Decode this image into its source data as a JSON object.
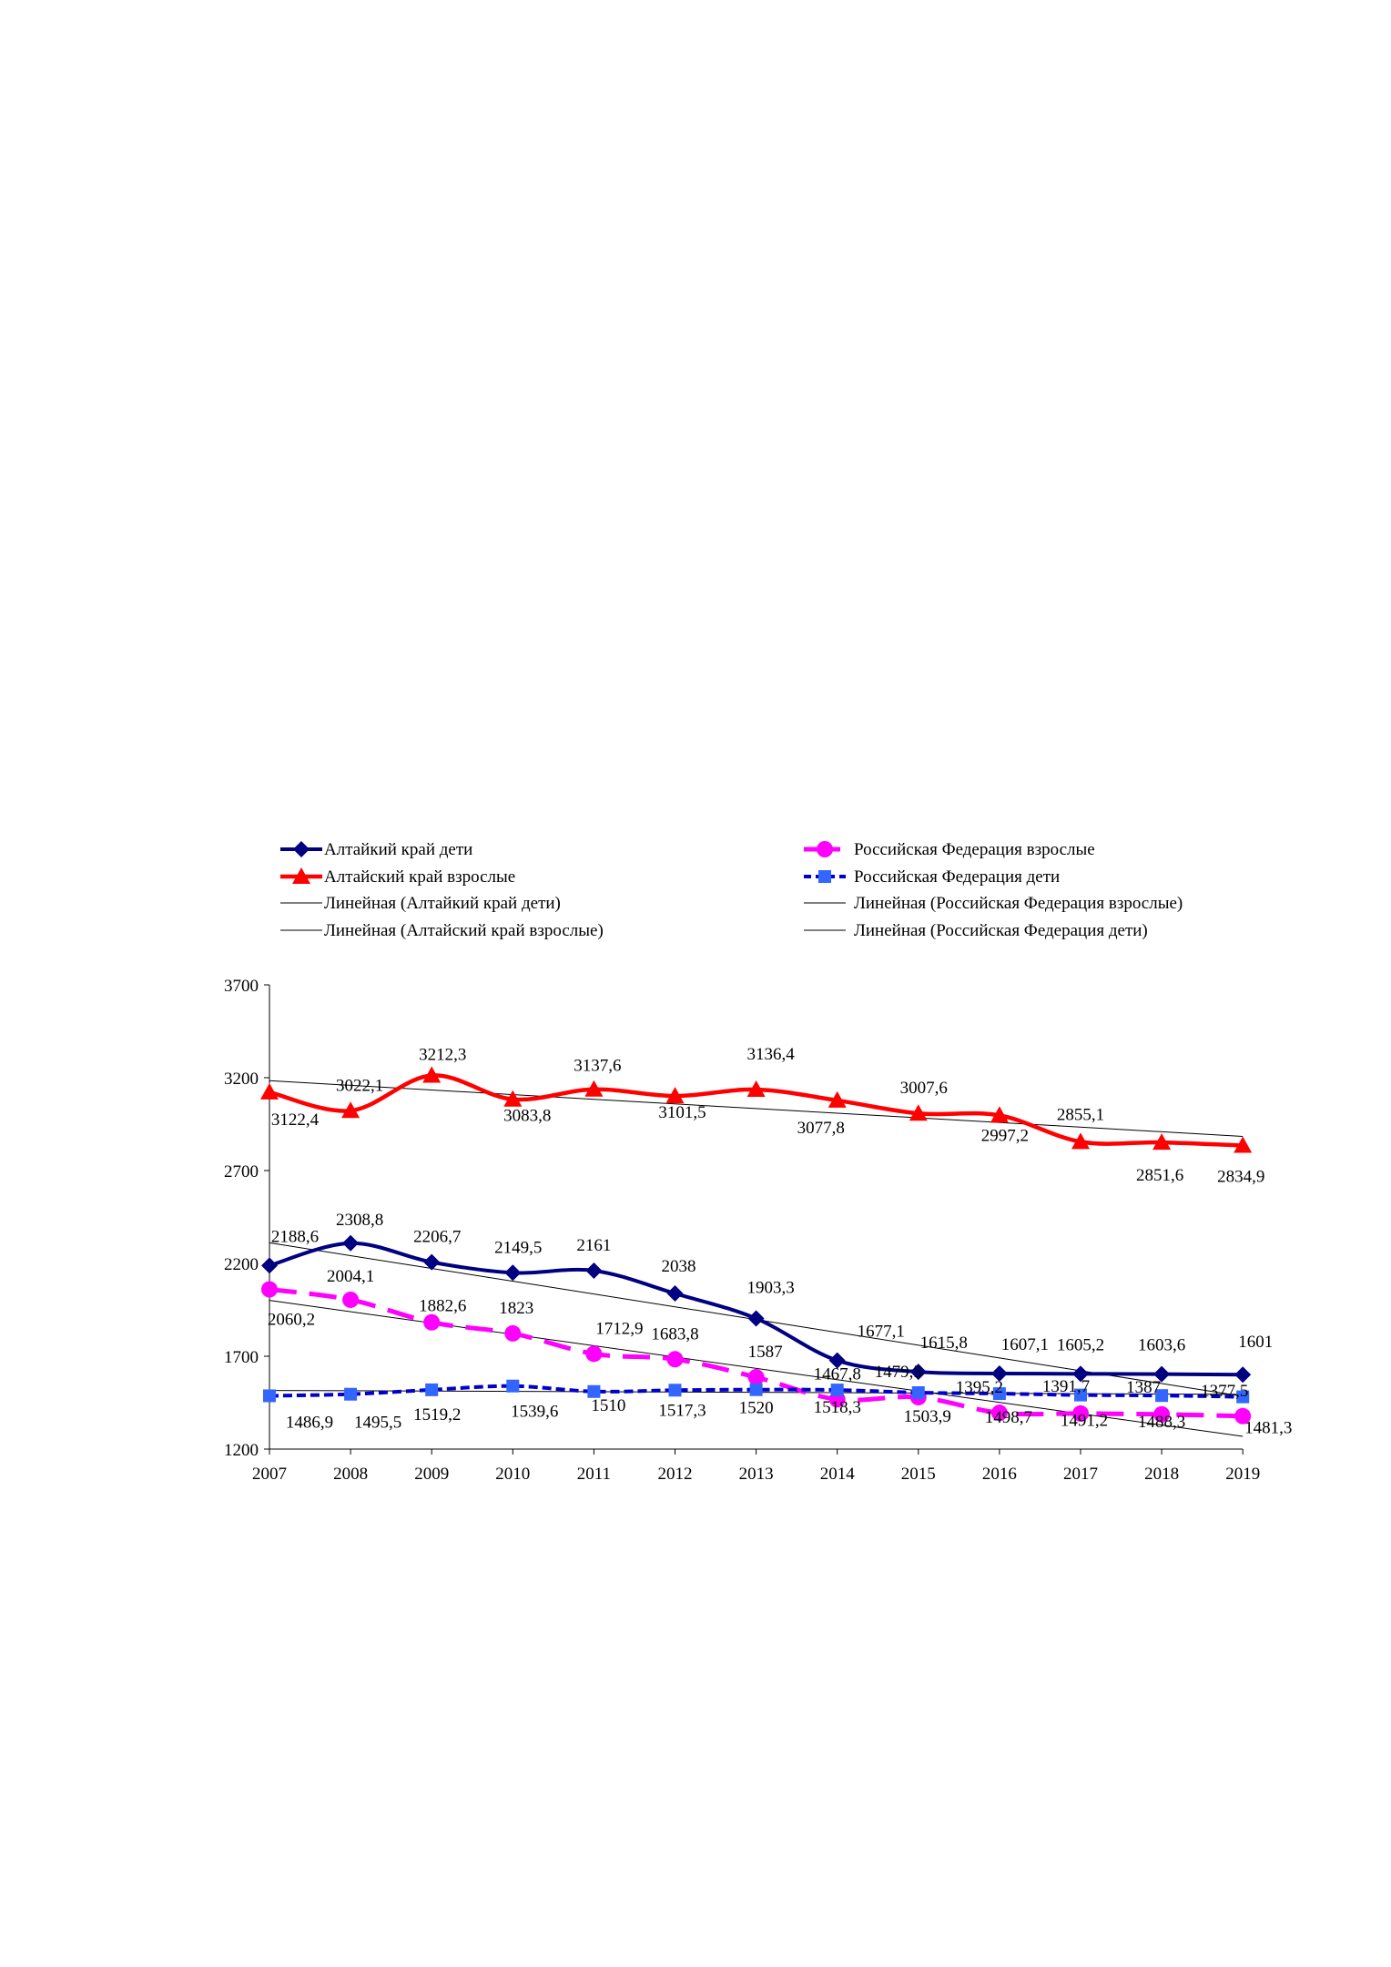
{
  "chart_data": {
    "type": "line",
    "categories": [
      "2007",
      "2008",
      "2009",
      "2010",
      "2011",
      "2012",
      "2013",
      "2014",
      "2015",
      "2016",
      "2017",
      "2018",
      "2019"
    ],
    "ylim": [
      1200,
      3700
    ],
    "yticks": [
      "1200",
      "1700",
      "2200",
      "2700",
      "3200",
      "3700"
    ],
    "grid": false,
    "legend_position": "top",
    "series": [
      {
        "name": "Алтайкий край дети",
        "color": "#000080",
        "marker": "diamond",
        "dash": "solid",
        "values": [
          2188.6,
          2308.8,
          2206.7,
          2149.5,
          2161,
          2038,
          1903.3,
          1677.1,
          1615.8,
          1607.1,
          1605.2,
          1603.6,
          1601
        ],
        "labels": [
          "2188,6",
          "2308,8",
          "2206,7",
          "2149,5",
          "2161",
          "2038",
          "1903,3",
          "1677,1",
          "1615,8",
          "1607,1",
          "1605,2",
          "1603,6",
          "1601"
        ]
      },
      {
        "name": "Алтайский край взрослые",
        "color": "#ff0000",
        "marker": "triangle",
        "dash": "solid",
        "values": [
          3122.4,
          3022.1,
          3212.3,
          3083.8,
          3137.6,
          3101.5,
          3136.4,
          3077.8,
          3007.6,
          2997.2,
          2855.1,
          2851.6,
          2834.9
        ],
        "labels": [
          "3122,4",
          "3022,1",
          "3212,3",
          "3083,8",
          "3137,6",
          "3101,5",
          "3136,4",
          "3077,8",
          "3007,6",
          "2997,2",
          "2855,1",
          "2851,6",
          "2834,9"
        ]
      },
      {
        "name": "Российская Федерация взрослые",
        "color": "#ff00ff",
        "marker": "circle",
        "dash": "longdash",
        "values": [
          2060.2,
          2004.1,
          1882.6,
          1823,
          1712.9,
          1683.8,
          1587,
          1467.8,
          1479.5,
          1395.2,
          1391.7,
          1387,
          1377.5
        ],
        "labels": [
          "2060,2",
          "2004,1",
          "1882,6",
          "1823",
          "1712,9",
          "1683,8",
          "1587",
          "1467,8",
          "1479,5",
          "1395,2",
          "1391,7",
          "1387",
          "1377,5"
        ]
      },
      {
        "name": "Российская Федерация дети",
        "color": "#0000cc",
        "marker": "square",
        "marker_color": "#3366ff",
        "dash": "shortdash",
        "values": [
          1486.9,
          1495.5,
          1519.2,
          1539.6,
          1510,
          1517.3,
          1520,
          1518.3,
          1503.9,
          1498.7,
          1491.2,
          1488.3,
          1481.3
        ],
        "labels": [
          "1486,9",
          "1495,5",
          "1519,2",
          "1539,6",
          "1510",
          "1517,3",
          "1520",
          "1518,3",
          "1503,9",
          "1498,7",
          "1491,2",
          "1488,3",
          "1481,3"
        ]
      }
    ],
    "trendlines": [
      {
        "name": "Линейная (Алтайкий край дети)",
        "series_index": 0
      },
      {
        "name": "Линейная (Алтайский край взрослые)",
        "series_index": 1
      },
      {
        "name": "Линейная (Российская Федерация взрослые)",
        "series_index": 2
      },
      {
        "name": "Линейная (Российская Федерация дети)",
        "series_index": 3
      }
    ]
  }
}
